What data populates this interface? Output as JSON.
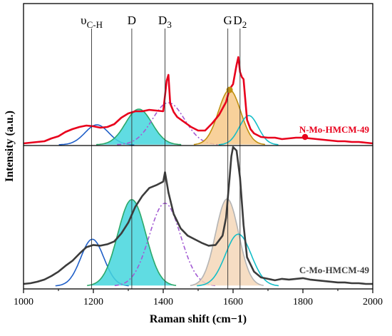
{
  "chart_data": {
    "type": "line",
    "xlabel": "Raman shift (cm−1)",
    "ylabel": "Intensity (a.u.)",
    "xlim": [
      1000,
      2000
    ],
    "xticks": [
      "1000",
      "1200",
      "1400",
      "1600",
      "1800",
      "2000"
    ],
    "grid": false,
    "peak_lines": [
      {
        "label": "υC-H",
        "x": 1195
      },
      {
        "label": "D",
        "x": 1310
      },
      {
        "label": "D3",
        "x": 1405
      },
      {
        "label": "G",
        "x": 1585
      },
      {
        "label": "D2",
        "x": 1620
      }
    ],
    "panels": [
      {
        "name": "N-Mo-HMCM-49",
        "color": "#e8001c",
        "measured": {
          "x": [
            1000,
            1020,
            1040,
            1060,
            1080,
            1100,
            1120,
            1140,
            1160,
            1180,
            1200,
            1220,
            1240,
            1260,
            1280,
            1300,
            1320,
            1340,
            1360,
            1380,
            1400,
            1410,
            1415,
            1420,
            1430,
            1440,
            1460,
            1480,
            1500,
            1520,
            1540,
            1560,
            1580,
            1590,
            1600,
            1610,
            1615,
            1620,
            1625,
            1630,
            1640,
            1650,
            1660,
            1680,
            1700,
            1720,
            1740,
            1760,
            1780,
            1800,
            1820,
            1840,
            1860,
            1880,
            1900,
            1920,
            1940,
            1960,
            1980,
            2000
          ],
          "y": [
            0.02,
            0.03,
            0.04,
            0.05,
            0.09,
            0.12,
            0.18,
            0.22,
            0.25,
            0.27,
            0.26,
            0.24,
            0.25,
            0.29,
            0.38,
            0.44,
            0.47,
            0.47,
            0.49,
            0.48,
            0.47,
            0.9,
            0.98,
            0.58,
            0.46,
            0.39,
            0.32,
            0.25,
            0.2,
            0.2,
            0.3,
            0.42,
            0.6,
            0.78,
            0.85,
            1.12,
            1.23,
            1.02,
            0.95,
            0.92,
            0.35,
            0.22,
            0.16,
            0.11,
            0.1,
            0.1,
            0.08,
            0.09,
            0.1,
            0.1,
            0.09,
            0.08,
            0.07,
            0.06,
            0.05,
            0.05,
            0.04,
            0.04,
            0.03,
            0.02
          ]
        },
        "fits": [
          {
            "name": "υC-H",
            "center": 1210,
            "height": 0.28,
            "width": 34,
            "color": "#1f5fc8",
            "fill": "none",
            "dashed": false
          },
          {
            "name": "D",
            "center": 1330,
            "height": 0.5,
            "width": 38,
            "color": "#2ca86a",
            "fill": "#44d6dd",
            "dashed": false
          },
          {
            "name": "D3",
            "center": 1415,
            "height": 0.59,
            "width": 46,
            "color": "#a35bd3",
            "fill": "none",
            "dashed": true
          },
          {
            "name": "G",
            "center": 1590,
            "height": 0.77,
            "width": 32,
            "color": "#c09010",
            "fill": "#f7c98a",
            "dashed": false
          },
          {
            "name": "D2",
            "center": 1645,
            "height": 0.41,
            "width": 27,
            "color": "#14bec8",
            "fill": "none",
            "dashed": false
          }
        ]
      },
      {
        "name": "C-Mo-HMCM-49",
        "color": "#3c3c3c",
        "measured": {
          "x": [
            1000,
            1020,
            1040,
            1060,
            1080,
            1100,
            1120,
            1140,
            1160,
            1180,
            1200,
            1220,
            1240,
            1260,
            1280,
            1300,
            1320,
            1340,
            1360,
            1380,
            1400,
            1405,
            1415,
            1430,
            1450,
            1470,
            1490,
            1510,
            1530,
            1550,
            1570,
            1580,
            1590,
            1595,
            1600,
            1610,
            1620,
            1630,
            1640,
            1660,
            1680,
            1700,
            1720,
            1740,
            1760,
            1780,
            1800,
            1820,
            1840,
            1860,
            1880,
            1900,
            1920,
            1940,
            1960,
            1980,
            2000
          ],
          "y": [
            0.03,
            0.04,
            0.06,
            0.09,
            0.14,
            0.2,
            0.28,
            0.35,
            0.45,
            0.54,
            0.57,
            0.56,
            0.58,
            0.62,
            0.73,
            0.88,
            1.1,
            1.25,
            1.36,
            1.4,
            1.45,
            1.58,
            1.3,
            1.0,
            0.8,
            0.7,
            0.65,
            0.6,
            0.56,
            0.57,
            0.7,
            0.95,
            1.5,
            1.8,
            1.93,
            1.88,
            1.5,
            0.85,
            0.4,
            0.2,
            0.12,
            0.1,
            0.08,
            0.1,
            0.09,
            0.1,
            0.11,
            0.09,
            0.08,
            0.07,
            0.06,
            0.05,
            0.05,
            0.04,
            0.04,
            0.03,
            0.03
          ]
        },
        "fits": [
          {
            "name": "υC-H",
            "center": 1197,
            "height": 0.65,
            "width": 33,
            "color": "#1f5fc8",
            "fill": "none",
            "dashed": false
          },
          {
            "name": "D",
            "center": 1310,
            "height": 1.2,
            "width": 40,
            "color": "#2ca86a",
            "fill": "#44d6dd",
            "dashed": false
          },
          {
            "name": "D3",
            "center": 1405,
            "height": 1.15,
            "width": 45,
            "color": "#a35bd3",
            "fill": "none",
            "dashed": true
          },
          {
            "name": "G",
            "center": 1583,
            "height": 1.21,
            "width": 33,
            "color": "#b4b4b4",
            "fill": "#f5d7b8",
            "dashed": false
          },
          {
            "name": "D2",
            "center": 1615,
            "height": 0.72,
            "width": 37,
            "color": "#14bec8",
            "fill": "none",
            "dashed": false
          }
        ]
      }
    ]
  }
}
